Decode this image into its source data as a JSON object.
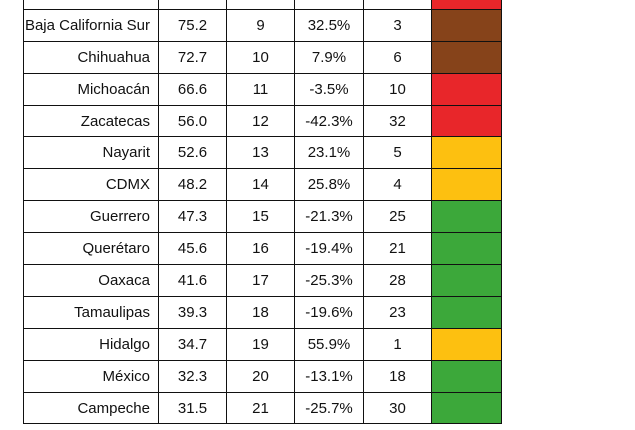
{
  "colors": {
    "red": "#e8262a",
    "brown": "#86431a",
    "yellow": "#fdc010",
    "green": "#3ca83a"
  },
  "rows": [
    {
      "state": "",
      "value": "",
      "rank": "",
      "change": "",
      "rank2": "",
      "color": "red"
    },
    {
      "state": "Baja California Sur",
      "value": "75.2",
      "rank": "9",
      "change": "32.5%",
      "rank2": "3",
      "color": "brown"
    },
    {
      "state": "Chihuahua",
      "value": "72.7",
      "rank": "10",
      "change": "7.9%",
      "rank2": "6",
      "color": "brown"
    },
    {
      "state": "Michoacán",
      "value": "66.6",
      "rank": "11",
      "change": "-3.5%",
      "rank2": "10",
      "color": "red"
    },
    {
      "state": "Zacatecas",
      "value": "56.0",
      "rank": "12",
      "change": "-42.3%",
      "rank2": "32",
      "color": "red"
    },
    {
      "state": "Nayarit",
      "value": "52.6",
      "rank": "13",
      "change": "23.1%",
      "rank2": "5",
      "color": "yellow"
    },
    {
      "state": "CDMX",
      "value": "48.2",
      "rank": "14",
      "change": "25.8%",
      "rank2": "4",
      "color": "yellow"
    },
    {
      "state": "Guerrero",
      "value": "47.3",
      "rank": "15",
      "change": "-21.3%",
      "rank2": "25",
      "color": "green"
    },
    {
      "state": "Querétaro",
      "value": "45.6",
      "rank": "16",
      "change": "-19.4%",
      "rank2": "21",
      "color": "green"
    },
    {
      "state": "Oaxaca",
      "value": "41.6",
      "rank": "17",
      "change": "-25.3%",
      "rank2": "28",
      "color": "green"
    },
    {
      "state": "Tamaulipas",
      "value": "39.3",
      "rank": "18",
      "change": "-19.6%",
      "rank2": "23",
      "color": "green"
    },
    {
      "state": "Hidalgo",
      "value": "34.7",
      "rank": "19",
      "change": "55.9%",
      "rank2": "1",
      "color": "yellow"
    },
    {
      "state": "México",
      "value": "32.3",
      "rank": "20",
      "change": "-13.1%",
      "rank2": "18",
      "color": "green"
    },
    {
      "state": "Campeche",
      "value": "31.5",
      "rank": "21",
      "change": "-25.7%",
      "rank2": "30",
      "color": "green"
    }
  ]
}
